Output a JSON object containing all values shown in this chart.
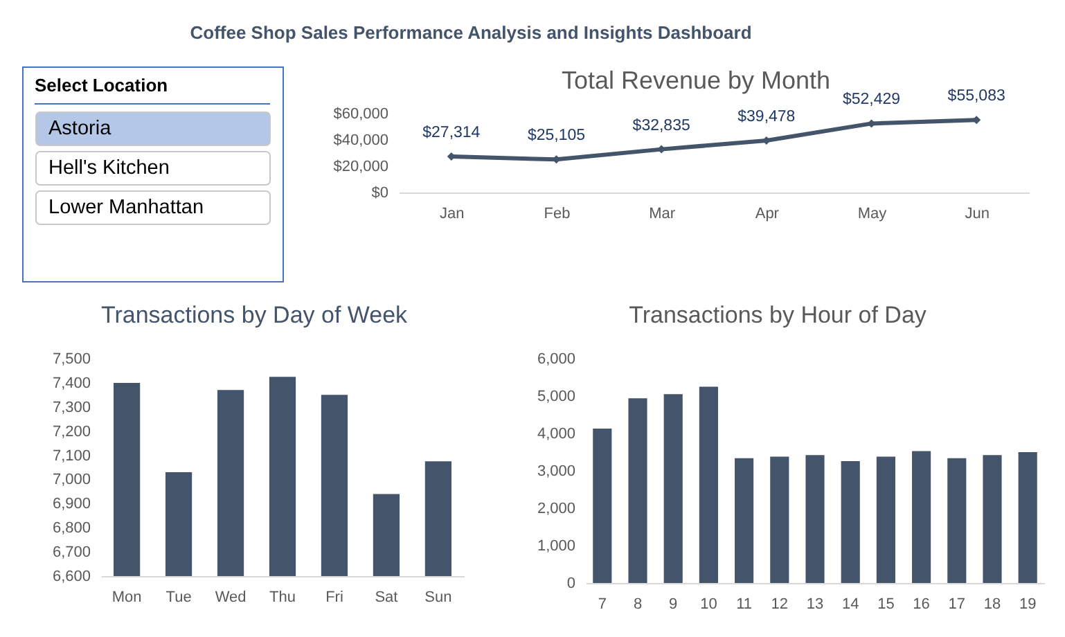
{
  "chart_data": [
    {
      "type": "other",
      "title": "Coffee Shop Sales Performance Analysis and Insights Dashboard"
    },
    {
      "type": "other",
      "title": "Select Location",
      "categories": [
        "Astoria",
        "Hell's Kitchen",
        "Lower Manhattan"
      ],
      "colors": [
        "#b4c7e7",
        "#ffffff",
        "#ffffff"
      ]
    },
    {
      "type": "line",
      "title": "Total Revenue by Month",
      "categories": [
        "Jan",
        "Feb",
        "Mar",
        "Apr",
        "May",
        "Jun"
      ],
      "values": [
        27314,
        25105,
        32835,
        39478,
        52429,
        55083
      ],
      "color": "#44546a",
      "value_labels": [
        "$27,314",
        "$25,105",
        "$32,835",
        "$39,478",
        "$52,429",
        "$55,083"
      ],
      "ylim": [
        0,
        60000
      ],
      "yticks": [
        {
          "value": 0,
          "label": "$0"
        },
        {
          "value": 20000,
          "label": "$20,000"
        },
        {
          "value": 40000,
          "label": "$40,000"
        },
        {
          "value": 60000,
          "label": "$60,000"
        }
      ],
      "marker": "diamond",
      "line_style": "solid"
    },
    {
      "type": "bar",
      "title": "Transactions by Day of Week",
      "categories": [
        "Mon",
        "Tue",
        "Wed",
        "Thu",
        "Fri",
        "Sat",
        "Sun"
      ],
      "values": [
        7400,
        7030,
        7370,
        7425,
        7350,
        6940,
        7075
      ],
      "color": "#44546a",
      "ylim": [
        6600,
        7500
      ],
      "yticks": [
        {
          "value": 6600,
          "label": "6,600"
        },
        {
          "value": 6700,
          "label": "6,700"
        },
        {
          "value": 6800,
          "label": "6,800"
        },
        {
          "value": 6900,
          "label": "6,900"
        },
        {
          "value": 7000,
          "label": "7,000"
        },
        {
          "value": 7100,
          "label": "7,100"
        },
        {
          "value": 7200,
          "label": "7,200"
        },
        {
          "value": 7300,
          "label": "7,300"
        },
        {
          "value": 7400,
          "label": "7,400"
        },
        {
          "value": 7500,
          "label": "7,500"
        }
      ]
    },
    {
      "type": "bar",
      "title": "Transactions by Hour of Day",
      "categories": [
        "7",
        "8",
        "9",
        "10",
        "11",
        "12",
        "13",
        "14",
        "15",
        "16",
        "17",
        "18",
        "19"
      ],
      "values": [
        4130,
        4940,
        5050,
        5250,
        3340,
        3380,
        3420,
        3260,
        3380,
        3530,
        3340,
        3420,
        3500
      ],
      "color": "#44546a",
      "ylim": [
        0,
        6000
      ],
      "yticks": [
        0,
        {
          "value": 1000,
          "label": "1,000"
        },
        {
          "value": 2000,
          "label": "2,000"
        },
        {
          "value": 3000,
          "label": "3,000"
        },
        {
          "value": 4000,
          "label": "4,000"
        },
        {
          "value": 5000,
          "label": "5,000"
        },
        {
          "value": 6000,
          "label": "6,000"
        }
      ]
    }
  ]
}
